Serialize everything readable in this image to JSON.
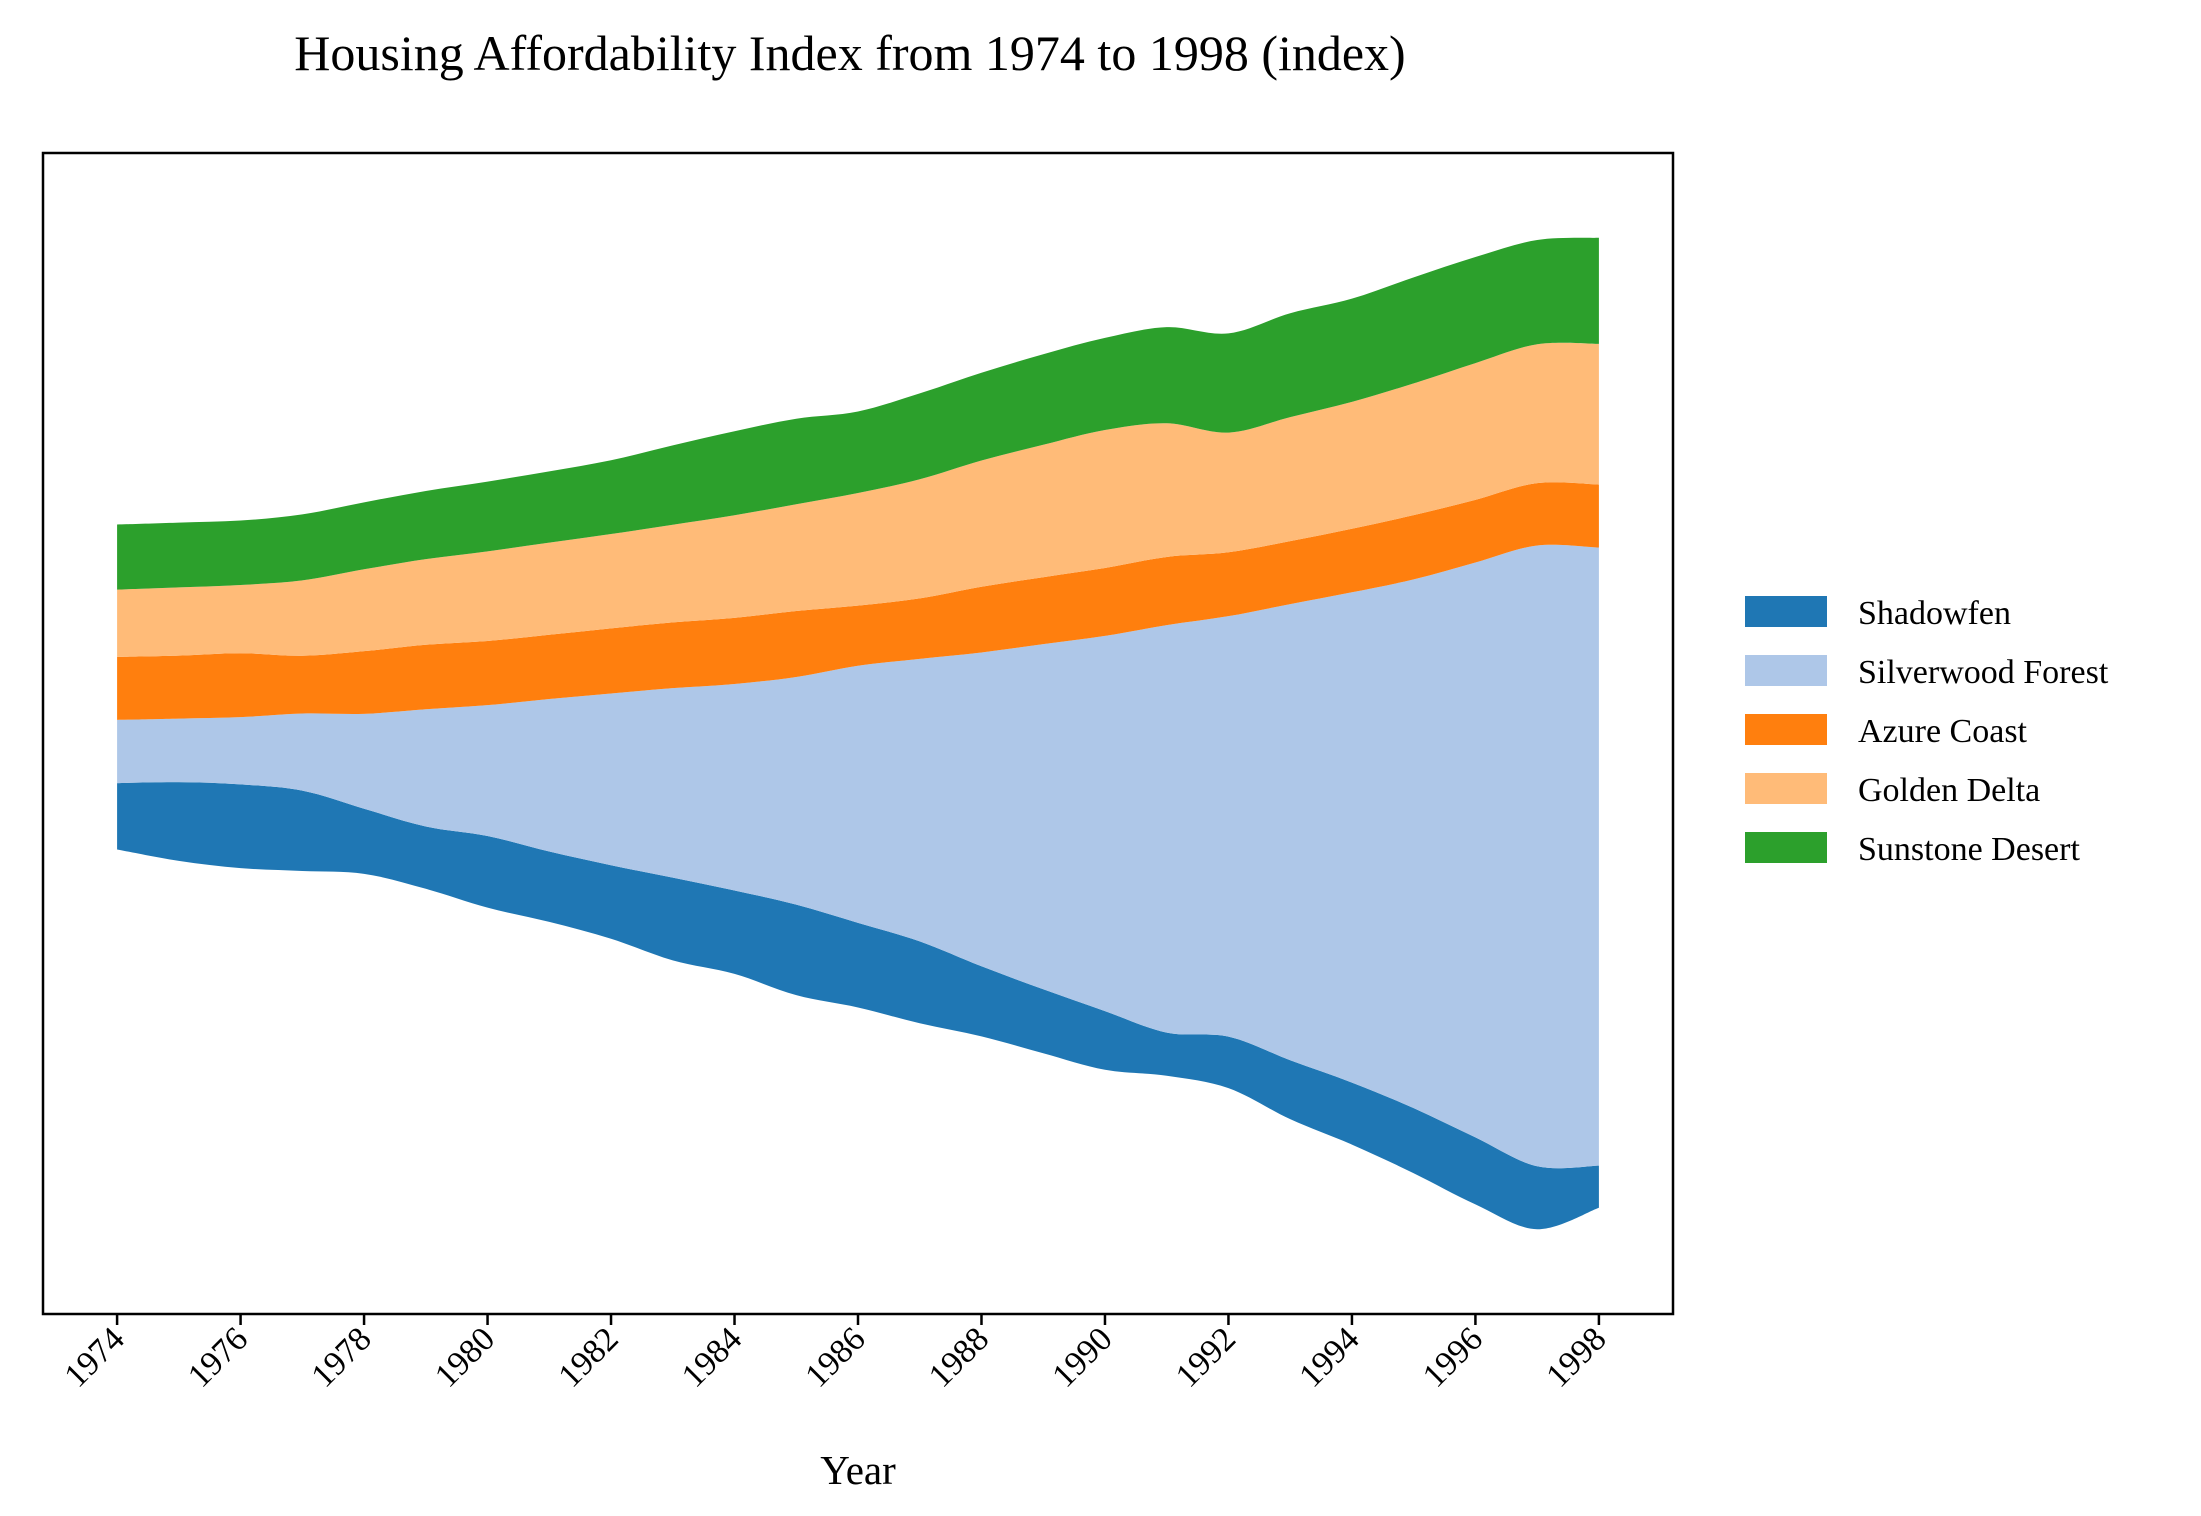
{
  "chart_data": {
    "type": "area",
    "subtype": "streamgraph",
    "title": "Housing Affordability Index from 1974 to 1998 (index)",
    "xlabel": "Year",
    "ylabel": "",
    "x": [
      1974,
      1975,
      1976,
      1977,
      1978,
      1979,
      1980,
      1981,
      1982,
      1983,
      1984,
      1985,
      1986,
      1987,
      1988,
      1989,
      1990,
      1991,
      1992,
      1993,
      1994,
      1995,
      1996,
      1997,
      1998
    ],
    "x_ticks": [
      "1974",
      "1976",
      "1978",
      "1980",
      "1982",
      "1984",
      "1986",
      "1988",
      "1990",
      "1992",
      "1994",
      "1996",
      "1998"
    ],
    "y_axis_visible": false,
    "grid": false,
    "legend_position": "right",
    "series": [
      {
        "name": "Shadowfen",
        "color": "#1f77b4",
        "values": [
          21.4,
          25.4,
          27.0,
          25.9,
          21.0,
          20.1,
          23.1,
          22.7,
          23.7,
          26.7,
          26.9,
          29.2,
          27.3,
          26.4,
          22.6,
          20.6,
          18.9,
          13.9,
          16.6,
          19.0,
          20.0,
          21.0,
          21.6,
          20.3,
          13.6
        ]
      },
      {
        "name": "Silverwood Forest",
        "color": "#aec7e8",
        "values": [
          20.4,
          20.5,
          21.7,
          24.9,
          30.6,
          37.8,
          42.2,
          49.2,
          55.4,
          61.1,
          66.6,
          73.4,
          82.9,
          91.1,
          101.2,
          111.3,
          121.0,
          131.4,
          135.6,
          147.1,
          158.1,
          170.5,
          185.4,
          200.2,
          199.3
        ]
      },
      {
        "name": "Azure Coast",
        "color": "#ff7f0e",
        "values": [
          20.3,
          20.3,
          20.6,
          18.6,
          20.2,
          20.8,
          20.7,
          20.7,
          21.0,
          21.2,
          21.3,
          21.3,
          19.4,
          19.5,
          21.2,
          21.6,
          21.9,
          22.0,
          20.6,
          20.3,
          20.5,
          20.7,
          20.2,
          20.1,
          20.3
        ]
      },
      {
        "name": "Golden Delta",
        "color": "#ffbb78",
        "values": [
          21.7,
          22.0,
          22.0,
          24.3,
          26.4,
          27.6,
          28.9,
          29.7,
          30.4,
          31.5,
          33.1,
          34.4,
          36.3,
          38.4,
          40.7,
          42.7,
          44.5,
          43.1,
          38.6,
          40.0,
          40.9,
          42.5,
          44.1,
          44.8,
          45.4
        ]
      },
      {
        "name": "Sunstone Desert",
        "color": "#2ca02c",
        "values": [
          21.0,
          20.9,
          20.8,
          21.3,
          21.6,
          22.0,
          22.5,
          23.0,
          23.8,
          25.6,
          27.1,
          27.6,
          26.3,
          27.7,
          28.3,
          29.2,
          29.7,
          31.0,
          32.0,
          33.5,
          33.3,
          34.2,
          34.2,
          33.6,
          34.2
        ]
      }
    ],
    "baseline": "wiggle",
    "xlim": [
      1972.8,
      1999.2
    ]
  }
}
